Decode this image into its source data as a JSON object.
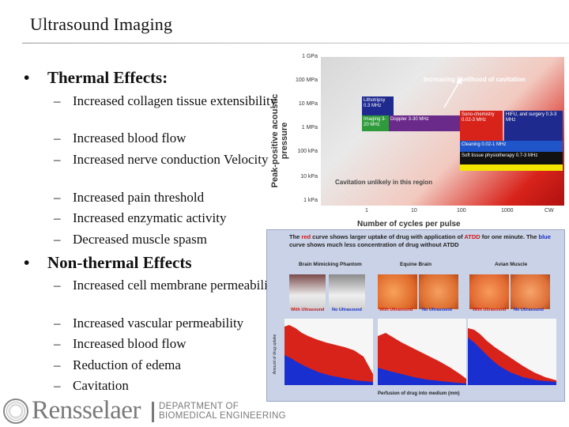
{
  "slide": {
    "title": "Ultrasound Imaging",
    "thermal": {
      "bullet": "•",
      "heading": "Thermal Effects:",
      "items": [
        "Increased collagen tissue extensibility",
        "Increased blood flow",
        "Increased nerve conduction Velocity",
        "Increased pain threshold",
        "Increased enzymatic activity",
        "Decreased muscle spasm"
      ]
    },
    "nonthermal": {
      "bullet": "•",
      "heading": "Non-thermal Effects",
      "items": [
        "Increased cell membrane permeability",
        "Increased vascular permeability",
        "Increased blood flow",
        "Reduction of edema",
        "Cavitation"
      ]
    },
    "dash": "–"
  },
  "pressure_chart": {
    "y_label": "Peak-positive acoustic pressure",
    "y_ticks": [
      "1 GPa",
      "100 MPa",
      "10 MPa",
      "1 MPa",
      "100 kPa",
      "10 kPa",
      "1 kPa"
    ],
    "x_label": "Number of cycles per pulse",
    "x_ticks": [
      "1",
      "10",
      "100",
      "1000",
      "CW"
    ],
    "arrow_note": "Increasing likelihood of cavitation",
    "bottom_note": "Cavitation unlikely in this region",
    "boxes": {
      "lithotripsy": "Lithotripsy 0.3 MHz",
      "imaging": "Imaging 3-20 MHz",
      "doppler": "Doppler 3-30 MHz",
      "sono": "Sono-chemistry 0.02-3 MHz",
      "hifu": "HIFU, and surgery 0.3-3 MHz",
      "cleaning": "Cleaning 0.02-1 MHz",
      "physio": "Soft tissue physiotherapy 0.7-3 MHz"
    }
  },
  "uptake_panel": {
    "caption_a": "The ",
    "caption_red": "red",
    "caption_b": " curve shows larger uptake of drug with application of ",
    "caption_atdd": "ATDD",
    "caption_c": " for one minute. The ",
    "caption_blue": "blue",
    "caption_d": " curve shows much less concentration of drug without ATDD",
    "heads": [
      "Brain Mimicking Phantom",
      "Equine Brain",
      "Avian Muscle"
    ],
    "with_label": "With Ultrasound",
    "without_label": "No Ultrasound",
    "y_label": "Amount of drug uptake",
    "x_label": "Perfusion of drug into medium (mm)"
  },
  "footer": {
    "wordmark": "Rensselaer",
    "dept_line1": "DEPARTMENT OF",
    "dept_line2": "BIOMEDICAL ENGINEERING"
  },
  "colors": {
    "red": "#d8231b",
    "blue": "#1a2fcf",
    "purple": "#6a2a8a",
    "green": "#2e9a3a",
    "yellow": "#f2e600",
    "navy": "#1f2a8f",
    "black": "#111111"
  }
}
